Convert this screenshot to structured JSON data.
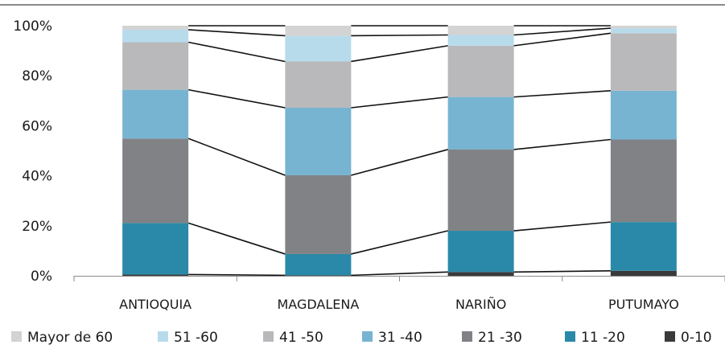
{
  "chart_data": {
    "type": "bar",
    "stacked": true,
    "percent_stacked": true,
    "categories": [
      "ANTIOQUIA",
      "MAGDALENA",
      "NARIÑO",
      "PUTUMAYO"
    ],
    "y_ticks": [
      "0%",
      "20%",
      "40%",
      "60%",
      "80%",
      "100%"
    ],
    "ylim": [
      0,
      100
    ],
    "series_lines": true,
    "legend_position": "bottom",
    "series": [
      {
        "name": "0-10",
        "color": "#3a3a3a",
        "values": [
          0.5,
          0.2,
          1.5,
          2.0
        ]
      },
      {
        "name": "11 -20",
        "color": "#2a89a8",
        "values": [
          20.6,
          8.5,
          16.5,
          19.5
        ]
      },
      {
        "name": "21 -30",
        "color": "#818285",
        "values": [
          33.8,
          31.5,
          32.5,
          33.0
        ]
      },
      {
        "name": "31 -40",
        "color": "#77b4d1",
        "values": [
          19.5,
          27.0,
          21.0,
          19.5
        ]
      },
      {
        "name": "41 -50",
        "color": "#b9b9bb",
        "values": [
          19.0,
          18.5,
          20.5,
          23.0
        ]
      },
      {
        "name": "51 -60",
        "color": "#b8dbeb",
        "values": [
          5.0,
          10.3,
          4.3,
          2.0
        ]
      },
      {
        "name": "Mayor de 60",
        "color": "#d3d3d3",
        "values": [
          1.6,
          4.0,
          3.7,
          1.0
        ]
      }
    ]
  }
}
